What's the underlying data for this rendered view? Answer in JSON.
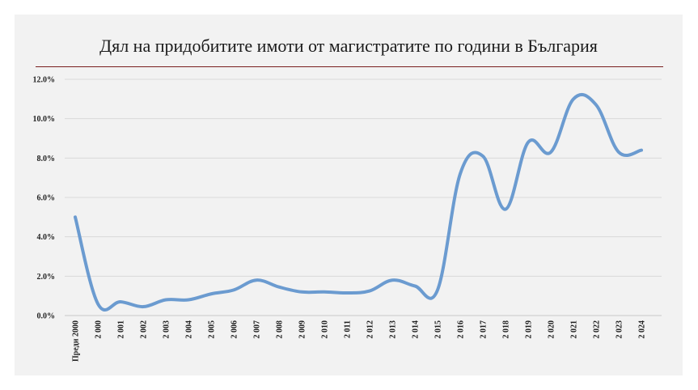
{
  "chart_data": {
    "type": "line",
    "title": "Дял на придобитите имоти от магистратите по години в България",
    "xlabel": "",
    "ylabel": "",
    "ylim": [
      0,
      12
    ],
    "y_ticks": [
      "0.0%",
      "2.0%",
      "4.0%",
      "6.0%",
      "8.0%",
      "10.0%",
      "12.0%"
    ],
    "grid": "horizontal",
    "legend": "none",
    "series_color": "#6b9bd0",
    "categories": [
      "Преди 2000",
      "2 000",
      "2 001",
      "2 002",
      "2 003",
      "2 004",
      "2 005",
      "2 006",
      "2 007",
      "2 008",
      "2 009",
      "2 010",
      "2 011",
      "2 012",
      "2 013",
      "2 014",
      "2 015",
      "2 016",
      "2 017",
      "2 018",
      "2 019",
      "2 020",
      "2 021",
      "2 022",
      "2 023",
      "2 024"
    ],
    "series": [
      {
        "values": [
          5.0,
          0.6,
          0.7,
          0.45,
          0.8,
          0.8,
          1.1,
          1.3,
          1.8,
          1.45,
          1.2,
          1.2,
          1.15,
          1.25,
          1.8,
          1.5,
          1.3,
          7.2,
          8.1,
          5.4,
          8.8,
          8.3,
          11.0,
          10.7,
          8.3,
          8.4
        ]
      }
    ]
  }
}
